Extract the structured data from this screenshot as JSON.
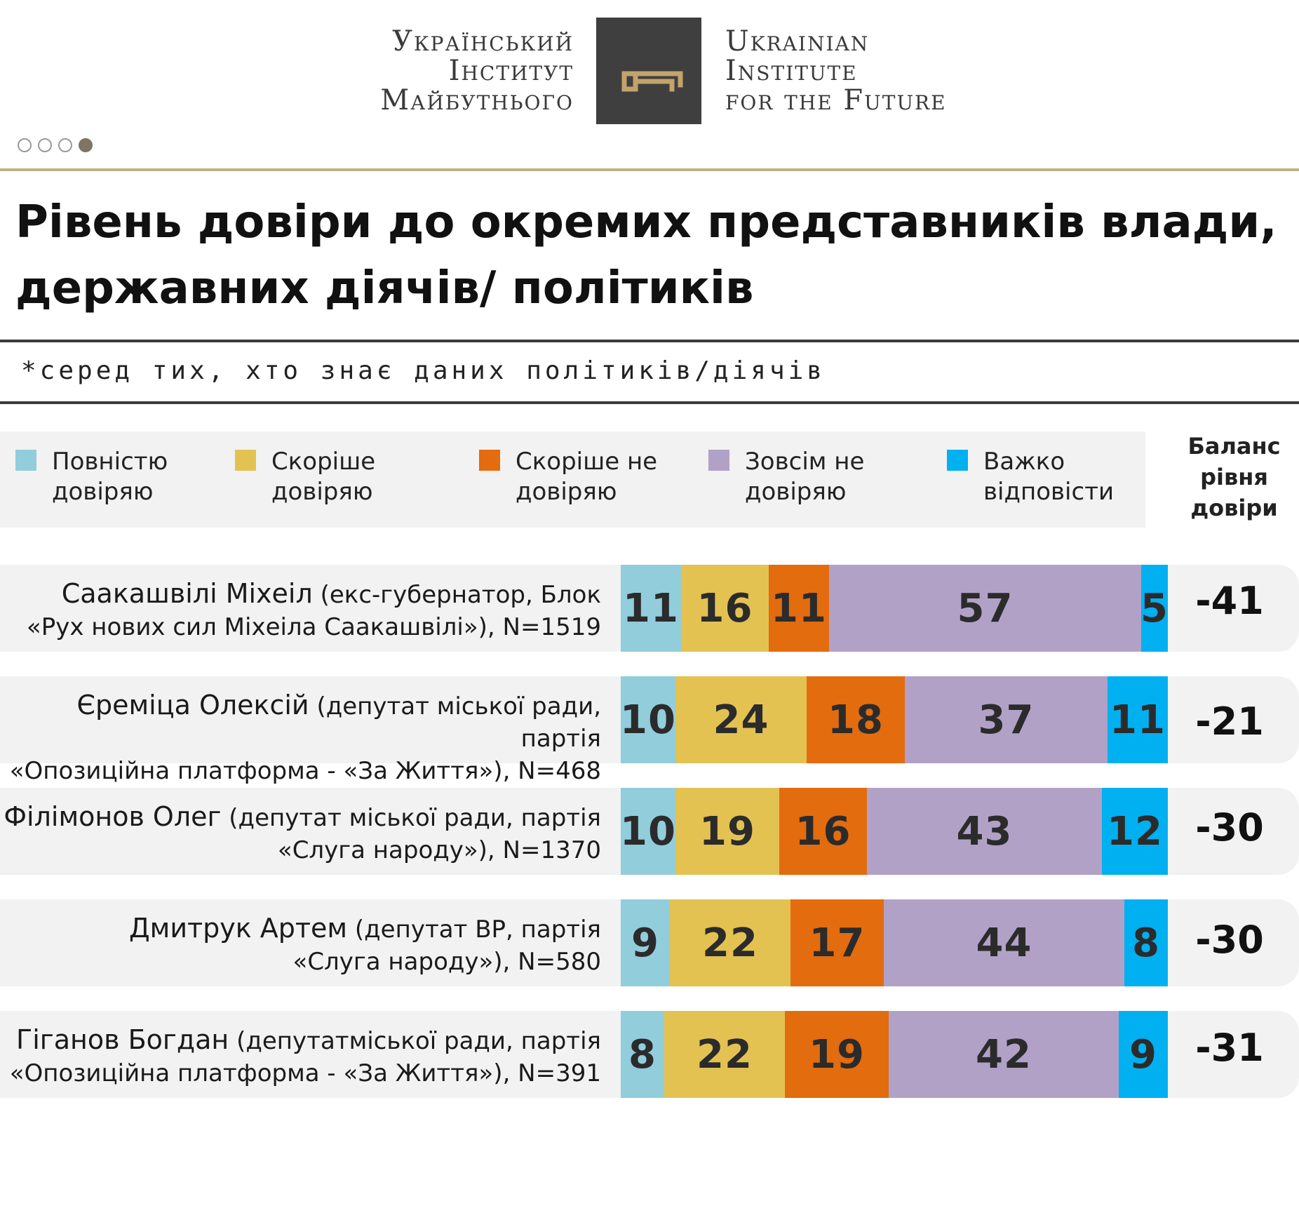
{
  "header": {
    "logo_ua": [
      "Український",
      "Інститут",
      "Майбутнього"
    ],
    "logo_en": [
      "Ukrainian",
      "Institute",
      "for the Future"
    ],
    "logo_icon": "key-icon",
    "pagination_total": 4,
    "pagination_active": 4
  },
  "title": "Рівень довіри до окремих представників влади, державних діячів/ політиків",
  "subtitle": "*серед тих, хто знає даних політиків/діячів",
  "balance_header": "Баланс рівня довіри",
  "colors": {
    "fully_trust": "#92cddc",
    "rather_trust": "#e3c252",
    "rather_not_trust": "#e36c0e",
    "not_trust_at_all": "#b2a1c7",
    "hard_to_say": "#00b0f0",
    "gold_rule": "#c2b08a",
    "logo_box": "#403f3f"
  },
  "chart_data": {
    "type": "bar",
    "orientation": "horizontal",
    "stacked": true,
    "title": "Рівень довіри до окремих представників влади, державних діячів/ політиків",
    "note": "*серед тих, хто знає даних політиків/діячів",
    "legend": [
      {
        "key": "fully_trust",
        "label": "Повністю довіряю"
      },
      {
        "key": "rather_trust",
        "label": "Скоріше довіряю"
      },
      {
        "key": "rather_not_trust",
        "label": "Скоріше не довіряю"
      },
      {
        "key": "not_trust_at_all",
        "label": "Зовсім не довіряю"
      },
      {
        "key": "hard_to_say",
        "label": "Важко відповісти"
      }
    ],
    "rows": [
      {
        "name": "Саакашвілі Міхеіл",
        "desc_line1": "(екс-губернатор, Блок",
        "line2": "«Рух нових сил Міхеіла Саакашвілі»), N=1519",
        "values": [
          11,
          16,
          11,
          57,
          5
        ],
        "balance": "-41"
      },
      {
        "name": "Єреміца Олексій",
        "desc_line1": "(депутат міської ради, партія",
        "line2": "«Опозиційна платформа - «За Життя»), N=468",
        "values": [
          10,
          24,
          18,
          37,
          11
        ],
        "balance": "-21"
      },
      {
        "name": "Філімонов Олег",
        "desc_line1": "(депутат міської ради, партія",
        "line2": "«Слуга народу»), N=1370",
        "values": [
          10,
          19,
          16,
          43,
          12
        ],
        "balance": "-30"
      },
      {
        "name": "Дмитрук Артем",
        "desc_line1": "(депутат ВР, партія",
        "line2": "«Слуга народу»), N=580",
        "values": [
          9,
          22,
          17,
          44,
          8
        ],
        "balance": "-30"
      },
      {
        "name": "Гіганов Богдан",
        "desc_line1": "(депутатміської ради, партія",
        "line2": "«Опозиційна платформа - «За Життя»), N=391",
        "values": [
          8,
          22,
          19,
          42,
          9
        ],
        "balance": "-31"
      }
    ]
  }
}
